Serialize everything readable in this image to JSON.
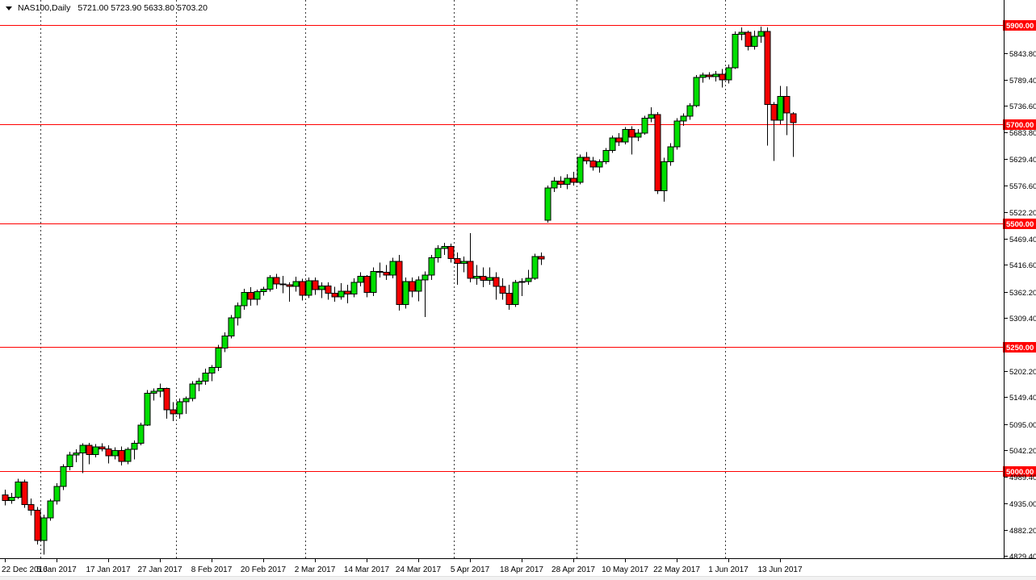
{
  "title": {
    "symbol_period": "NAS100,Daily",
    "ohlc_text": "5721.00 5723.90 5633.80 5703.20"
  },
  "colors": {
    "background": "#FFFFFF",
    "bull_body": "#00DF00",
    "bear_body": "#F40000",
    "candle_outline": "#000000",
    "wick": "#000000",
    "hline": "#FF0000",
    "hline_label_bg": "#FF0000",
    "hline_label_text": "#FFFFFF",
    "axis_line": "#000000",
    "axis_text": "#000000",
    "separator": "#3a3a3a"
  },
  "chart_data": {
    "type": "candlestick",
    "symbol": "NAS100",
    "timeframe": "Daily",
    "current_bar": {
      "open": 5721.0,
      "high": 5723.9,
      "low": 5633.8,
      "close": 5703.2
    },
    "y_axis": {
      "ticks": [
        5843.8,
        5789.4,
        5736.6,
        5683.8,
        5629.4,
        5576.6,
        5522.2,
        5469.4,
        5416.6,
        5362.2,
        5309.4,
        5202.2,
        5149.4,
        5095.0,
        5042.2,
        4989.4,
        4935.0,
        4882.2,
        4829.4
      ]
    },
    "horizontal_lines": [
      5900.0,
      5700.0,
      5500.0,
      5250.0,
      5000.0
    ],
    "x_axis": {
      "tick_labels": [
        "22 Dec 2016",
        "5 Jan 2017",
        "17 Jan 2017",
        "27 Jan 2017",
        "8 Feb 2017",
        "20 Feb 2017",
        "2 Mar 2017",
        "14 Mar 2017",
        "24 Mar 2017",
        "5 Apr 2017",
        "18 Apr 2017",
        "28 Apr 2017",
        "10 May 2017",
        "22 May 2017",
        "1 Jun 2017",
        "13 Jun 2017"
      ],
      "candles_per_tick": 8
    },
    "candles": [
      [
        "22 Dec 2016",
        4952,
        4963,
        4931,
        4941
      ],
      [
        "23 Dec 2016",
        4941,
        4956,
        4934,
        4947
      ],
      [
        "27 Dec 2016",
        4947,
        4985,
        4944,
        4978
      ],
      [
        "28 Dec 2016",
        4978,
        4983,
        4926,
        4933
      ],
      [
        "29 Dec 2016",
        4933,
        4945,
        4911,
        4921
      ],
      [
        "30 Dec 2016",
        4921,
        4928,
        4852,
        4860
      ],
      [
        "3 Jan 2017",
        4860,
        4912,
        4832,
        4906
      ],
      [
        "4 Jan 2017",
        4906,
        4944,
        4900,
        4940
      ],
      [
        "5 Jan 2017",
        4940,
        4976,
        4933,
        4969
      ],
      [
        "6 Jan 2017",
        4969,
        5014,
        4962,
        5009
      ],
      [
        "9 Jan 2017",
        5009,
        5039,
        5002,
        5033
      ],
      [
        "10 Jan 2017",
        5033,
        5044,
        5018,
        5037
      ],
      [
        "11 Jan 2017",
        5037,
        5056,
        4996,
        5052
      ],
      [
        "12 Jan 2017",
        5052,
        5057,
        5014,
        5034
      ],
      [
        "13 Jan 2017",
        5034,
        5055,
        5028,
        5049
      ],
      [
        "16 Jan 2017",
        5049,
        5056,
        5040,
        5045
      ],
      [
        "17 Jan 2017",
        5045,
        5052,
        5016,
        5031
      ],
      [
        "18 Jan 2017",
        5031,
        5048,
        5024,
        5042
      ],
      [
        "19 Jan 2017",
        5042,
        5050,
        5012,
        5020
      ],
      [
        "20 Jan 2017",
        5020,
        5048,
        5014,
        5044
      ],
      [
        "23 Jan 2017",
        5044,
        5062,
        5024,
        5056
      ],
      [
        "24 Jan 2017",
        5056,
        5098,
        5052,
        5093
      ],
      [
        "25 Jan 2017",
        5093,
        5164,
        5091,
        5157
      ],
      [
        "26 Jan 2017",
        5157,
        5167,
        5143,
        5161
      ],
      [
        "27 Jan 2017",
        5161,
        5177,
        5149,
        5167
      ],
      [
        "30 Jan 2017",
        5167,
        5169,
        5106,
        5124
      ],
      [
        "31 Jan 2017",
        5124,
        5139,
        5101,
        5116
      ],
      [
        "1 Feb 2017",
        5116,
        5147,
        5106,
        5140
      ],
      [
        "2 Feb 2017",
        5140,
        5151,
        5116,
        5147
      ],
      [
        "3 Feb 2017",
        5147,
        5182,
        5141,
        5176
      ],
      [
        "6 Feb 2017",
        5176,
        5188,
        5161,
        5182
      ],
      [
        "7 Feb 2017",
        5182,
        5207,
        5174,
        5198
      ],
      [
        "8 Feb 2017",
        5198,
        5214,
        5182,
        5209
      ],
      [
        "9 Feb 2017",
        5209,
        5255,
        5202,
        5248
      ],
      [
        "10 Feb 2017",
        5248,
        5280,
        5240,
        5273
      ],
      [
        "13 Feb 2017",
        5273,
        5315,
        5268,
        5309
      ],
      [
        "14 Feb 2017",
        5309,
        5340,
        5294,
        5334
      ],
      [
        "15 Feb 2017",
        5334,
        5368,
        5326,
        5361
      ],
      [
        "16 Feb 2017",
        5361,
        5371,
        5334,
        5347
      ],
      [
        "17 Feb 2017",
        5347,
        5366,
        5335,
        5362
      ],
      [
        "20 Feb 2017",
        5362,
        5372,
        5354,
        5367
      ],
      [
        "21 Feb 2017",
        5367,
        5396,
        5362,
        5391
      ],
      [
        "22 Feb 2017",
        5391,
        5398,
        5368,
        5378
      ],
      [
        "23 Feb 2017",
        5378,
        5394,
        5359,
        5376
      ],
      [
        "24 Feb 2017",
        5376,
        5381,
        5342,
        5373
      ],
      [
        "27 Feb 2017",
        5373,
        5392,
        5362,
        5383
      ],
      [
        "28 Feb 2017",
        5383,
        5388,
        5344,
        5355
      ],
      [
        "1 Mar 2017",
        5355,
        5391,
        5349,
        5384
      ],
      [
        "2 Mar 2017",
        5384,
        5391,
        5356,
        5366
      ],
      [
        "3 Mar 2017",
        5366,
        5381,
        5349,
        5374
      ],
      [
        "6 Mar 2017",
        5374,
        5381,
        5346,
        5359
      ],
      [
        "7 Mar 2017",
        5359,
        5372,
        5342,
        5352
      ],
      [
        "8 Mar 2017",
        5352,
        5379,
        5346,
        5363
      ],
      [
        "9 Mar 2017",
        5363,
        5376,
        5339,
        5357
      ],
      [
        "10 Mar 2017",
        5357,
        5389,
        5351,
        5381
      ],
      [
        "13 Mar 2017",
        5381,
        5401,
        5373,
        5393
      ],
      [
        "14 Mar 2017",
        5393,
        5396,
        5351,
        5361
      ],
      [
        "15 Mar 2017",
        5361,
        5411,
        5353,
        5403
      ],
      [
        "16 Mar 2017",
        5403,
        5421,
        5391,
        5401
      ],
      [
        "17 Mar 2017",
        5401,
        5416,
        5386,
        5396
      ],
      [
        "20 Mar 2017",
        5396,
        5431,
        5389,
        5423
      ],
      [
        "21 Mar 2017",
        5423,
        5436,
        5324,
        5336
      ],
      [
        "22 Mar 2017",
        5336,
        5391,
        5328,
        5383
      ],
      [
        "23 Mar 2017",
        5383,
        5391,
        5351,
        5363
      ],
      [
        "24 Mar 2017",
        5363,
        5393,
        5343,
        5386
      ],
      [
        "27 Mar 2017",
        5386,
        5403,
        5311,
        5396
      ],
      [
        "28 Mar 2017",
        5396,
        5436,
        5386,
        5431
      ],
      [
        "29 Mar 2017",
        5431,
        5456,
        5421,
        5449
      ],
      [
        "30 Mar 2017",
        5449,
        5461,
        5436,
        5453
      ],
      [
        "31 Mar 2017",
        5453,
        5459,
        5421,
        5429
      ],
      [
        "3 Apr 2017",
        5429,
        5441,
        5376,
        5419
      ],
      [
        "4 Apr 2017",
        5419,
        5433,
        5401,
        5423
      ],
      [
        "5 Apr 2017",
        5423,
        5480,
        5381,
        5389
      ],
      [
        "6 Apr 2017",
        5389,
        5416,
        5376,
        5393
      ],
      [
        "7 Apr 2017",
        5393,
        5411,
        5371,
        5385
      ],
      [
        "10 Apr 2017",
        5385,
        5411,
        5376,
        5391
      ],
      [
        "11 Apr 2017",
        5391,
        5401,
        5346,
        5373
      ],
      [
        "12 Apr 2017",
        5373,
        5389,
        5346,
        5359
      ],
      [
        "13 Apr 2017",
        5359,
        5376,
        5326,
        5336
      ],
      [
        "17 Apr 2017",
        5336,
        5386,
        5331,
        5381
      ],
      [
        "18 Apr 2017",
        5381,
        5389,
        5353,
        5383
      ],
      [
        "19 Apr 2017",
        5383,
        5406,
        5376,
        5389
      ],
      [
        "20 Apr 2017",
        5389,
        5439,
        5386,
        5433
      ],
      [
        "21 Apr 2017",
        5433,
        5441,
        5416,
        5428
      ],
      [
        "24 Apr 2017",
        5506,
        5576,
        5501,
        5571
      ],
      [
        "25 Apr 2017",
        5571,
        5593,
        5563,
        5585
      ],
      [
        "26 Apr 2017",
        5585,
        5595,
        5571,
        5579
      ],
      [
        "27 Apr 2017",
        5579,
        5599,
        5569,
        5591
      ],
      [
        "28 Apr 2017",
        5591,
        5604,
        5576,
        5583
      ],
      [
        "1 May 2017",
        5583,
        5639,
        5579,
        5633
      ],
      [
        "2 May 2017",
        5633,
        5644,
        5619,
        5626
      ],
      [
        "3 May 2017",
        5626,
        5634,
        5606,
        5614
      ],
      [
        "4 May 2017",
        5614,
        5629,
        5602,
        5624
      ],
      [
        "5 May 2017",
        5624,
        5652,
        5619,
        5647
      ],
      [
        "8 May 2017",
        5647,
        5677,
        5642,
        5672
      ],
      [
        "9 May 2017",
        5672,
        5682,
        5656,
        5664
      ],
      [
        "10 May 2017",
        5664,
        5694,
        5659,
        5689
      ],
      [
        "11 May 2017",
        5689,
        5696,
        5639,
        5674
      ],
      [
        "12 May 2017",
        5674,
        5690,
        5666,
        5682
      ],
      [
        "15 May 2017",
        5682,
        5717,
        5679,
        5712
      ],
      [
        "16 May 2017",
        5712,
        5734,
        5704,
        5719
      ],
      [
        "17 May 2017",
        5719,
        5724,
        5559,
        5566
      ],
      [
        "18 May 2017",
        5566,
        5632,
        5544,
        5624
      ],
      [
        "19 May 2017",
        5624,
        5662,
        5616,
        5654
      ],
      [
        "22 May 2017",
        5654,
        5712,
        5649,
        5706
      ],
      [
        "23 May 2017",
        5706,
        5722,
        5697,
        5716
      ],
      [
        "24 May 2017",
        5716,
        5742,
        5709,
        5737
      ],
      [
        "25 May 2017",
        5737,
        5799,
        5734,
        5794
      ],
      [
        "26 May 2017",
        5794,
        5804,
        5784,
        5799
      ],
      [
        "29 May 2017",
        5799,
        5805,
        5790,
        5796
      ],
      [
        "30 May 2017",
        5796,
        5807,
        5786,
        5801
      ],
      [
        "31 May 2017",
        5801,
        5811,
        5774,
        5789
      ],
      [
        "1 Jun 2017",
        5789,
        5820,
        5782,
        5814
      ],
      [
        "2 Jun 2017",
        5814,
        5887,
        5811,
        5881
      ],
      [
        "5 Jun 2017",
        5881,
        5895,
        5869,
        5885
      ],
      [
        "6 Jun 2017",
        5885,
        5889,
        5849,
        5857
      ],
      [
        "7 Jun 2017",
        5857,
        5889,
        5850,
        5877
      ],
      [
        "8 Jun 2017",
        5877,
        5897,
        5864,
        5887
      ],
      [
        "9 Jun 2017",
        5887,
        5895,
        5657,
        5740
      ],
      [
        "12 Jun 2017",
        5740,
        5745,
        5626,
        5708
      ],
      [
        "13 Jun 2017",
        5708,
        5777,
        5700,
        5756
      ],
      [
        "14 Jun 2017",
        5756,
        5776,
        5678,
        5723
      ],
      [
        "15 Jun 2017",
        5721,
        5723.9,
        5633.8,
        5703.2
      ]
    ]
  }
}
